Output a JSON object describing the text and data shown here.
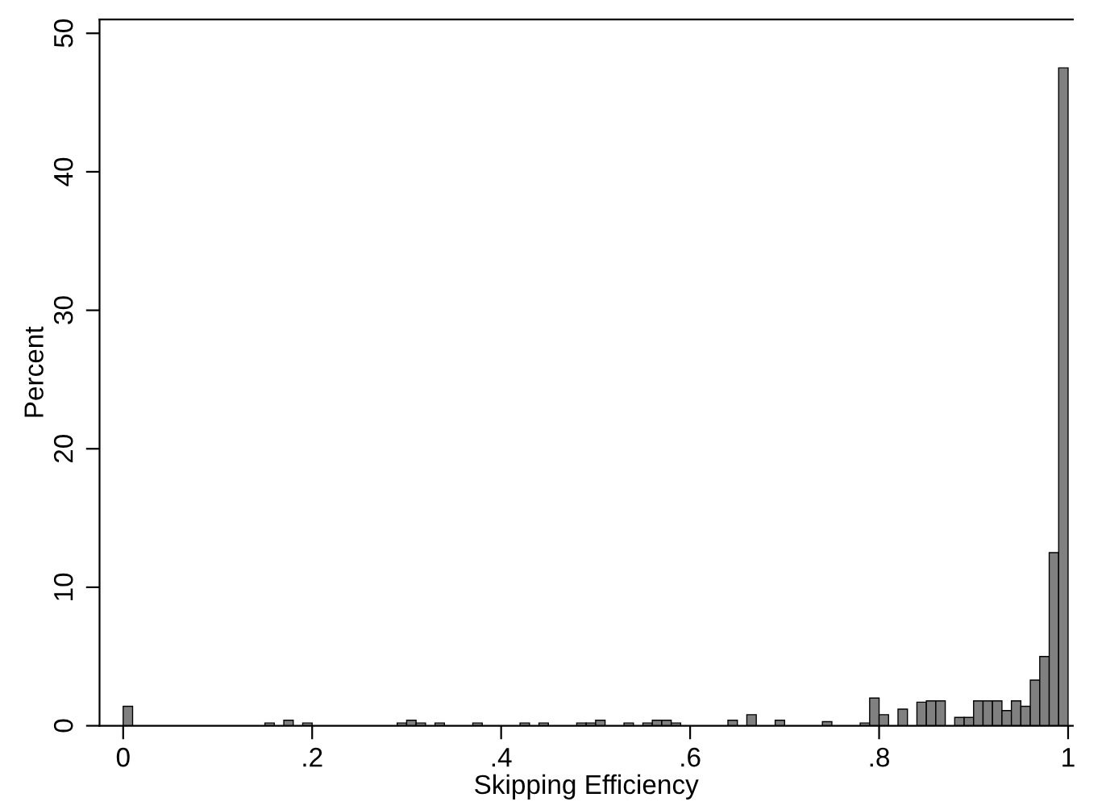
{
  "chart_data": {
    "type": "histogram",
    "xlabel": "Skipping Efficiency",
    "ylabel": "Percent",
    "bins": [
      0,
      0.01,
      0.02,
      0.03,
      0.04,
      0.05,
      0.06,
      0.07,
      0.08,
      0.09,
      0.1,
      0.11,
      0.12,
      0.13,
      0.14,
      0.15,
      0.16,
      0.17,
      0.18,
      0.19,
      0.2,
      0.21,
      0.22,
      0.23,
      0.24,
      0.25,
      0.26,
      0.27,
      0.28,
      0.29,
      0.3,
      0.31,
      0.32,
      0.33,
      0.34,
      0.35,
      0.36,
      0.37,
      0.38,
      0.39,
      0.4,
      0.41,
      0.42,
      0.43,
      0.44,
      0.45,
      0.46,
      0.47,
      0.48,
      0.49,
      0.5,
      0.51,
      0.52,
      0.53,
      0.54,
      0.55,
      0.56,
      0.57,
      0.58,
      0.59,
      0.6,
      0.61,
      0.62,
      0.63,
      0.64,
      0.65,
      0.66,
      0.67,
      0.68,
      0.69,
      0.7,
      0.71,
      0.72,
      0.73,
      0.74,
      0.75,
      0.76,
      0.77,
      0.78,
      0.79,
      0.8,
      0.81,
      0.82,
      0.83,
      0.84,
      0.85,
      0.86,
      0.87,
      0.88,
      0.89,
      0.9,
      0.91,
      0.92,
      0.93,
      0.94,
      0.95,
      0.96,
      0.97,
      0.98,
      0.99,
      1
    ],
    "values": [
      1.4,
      0,
      0,
      0,
      0,
      0,
      0,
      0,
      0,
      0,
      0,
      0,
      0,
      0,
      0,
      0.2,
      0,
      0.4,
      0,
      0.2,
      0,
      0,
      0,
      0,
      0,
      0,
      0,
      0,
      0,
      0.2,
      0.4,
      0.2,
      0,
      0.2,
      0,
      0,
      0,
      0.2,
      0,
      0,
      0,
      0,
      0.2,
      0,
      0.2,
      0,
      0,
      0,
      0.2,
      0.2,
      0.4,
      0,
      0,
      0.2,
      0,
      0.2,
      0.4,
      0.4,
      0.2,
      0,
      0,
      0,
      0,
      0,
      0.4,
      0,
      0.8,
      0,
      0,
      0.4,
      0,
      0,
      0,
      0,
      0.3,
      0,
      0,
      0,
      0.2,
      2.0,
      0.8,
      0,
      1.2,
      0,
      1.7,
      1.8,
      1.8,
      0,
      0.6,
      0.6,
      1.8,
      1.8,
      1.8,
      1.1,
      1.8,
      1.4,
      3.3,
      5.0,
      12.5,
      47.5
    ],
    "color": "#808080",
    "xlim": [
      -0.025,
      1.005
    ],
    "ylim": [
      0,
      51
    ],
    "xticks": [
      0,
      {
        "value": 0.2,
        "label": ".2"
      },
      {
        "value": 0.4,
        "label": ".4"
      },
      {
        "value": 0.6,
        "label": ".6"
      },
      {
        "value": 0.8,
        "label": ".8"
      },
      1
    ],
    "yticks": [
      0,
      10,
      20,
      30,
      40,
      50
    ],
    "grid": false
  }
}
